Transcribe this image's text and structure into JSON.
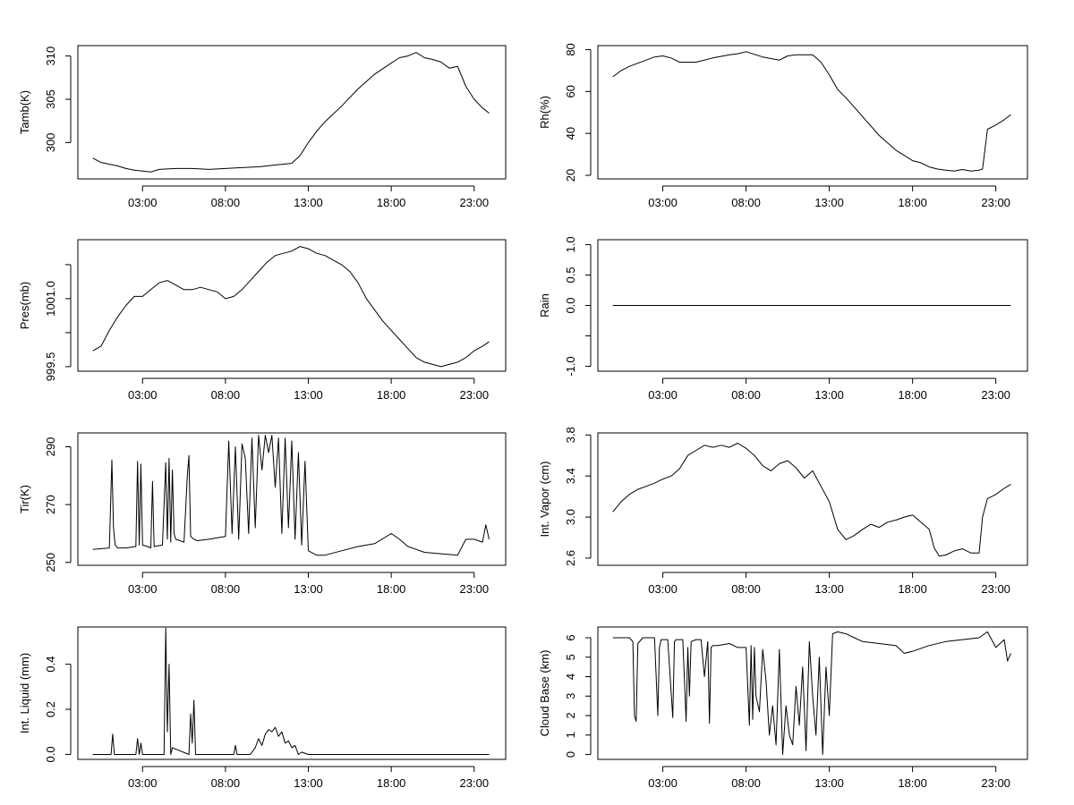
{
  "chart_data": [
    {
      "type": "line",
      "ylabel": "Tamb(K)",
      "x_ticks": [
        "03:00",
        "08:00",
        "13:00",
        "18:00",
        "23:00"
      ],
      "x_tick_values": [
        3,
        8,
        13,
        18,
        23
      ],
      "xlim": [
        -0.9,
        24.9
      ],
      "ylim": [
        295.8,
        311.2
      ],
      "y_ticks": [
        300,
        305,
        310
      ],
      "y_tick_labels": [
        "300",
        "305",
        "310"
      ],
      "series": [
        {
          "x": [
            0,
            0.5,
            1,
            1.5,
            2,
            2.5,
            3,
            3.5,
            4,
            5,
            6,
            7,
            8,
            9,
            10,
            11,
            12,
            12.5,
            13,
            13.5,
            14,
            15,
            16,
            17,
            18,
            18.5,
            19,
            19.5,
            20,
            20.5,
            21,
            21.5,
            22,
            22.5,
            23,
            23.5,
            23.9
          ],
          "y": [
            298.2,
            297.7,
            297.5,
            297.3,
            297.0,
            296.8,
            296.7,
            296.6,
            296.9,
            297.0,
            297.0,
            296.9,
            297.0,
            297.1,
            297.2,
            297.4,
            297.6,
            298.5,
            300.0,
            301.3,
            302.4,
            304.2,
            306.2,
            307.9,
            309.2,
            309.8,
            310.0,
            310.4,
            309.8,
            309.6,
            309.3,
            308.6,
            308.8,
            306.5,
            305.0,
            304.0,
            303.4
          ]
        }
      ]
    },
    {
      "type": "line",
      "ylabel": "Rh(%)",
      "x_ticks": [
        "03:00",
        "08:00",
        "13:00",
        "18:00",
        "23:00"
      ],
      "x_tick_values": [
        3,
        8,
        13,
        18,
        23
      ],
      "xlim": [
        -0.9,
        24.9
      ],
      "ylim": [
        18.3,
        81.9
      ],
      "y_ticks": [
        20,
        40,
        60,
        80
      ],
      "y_tick_labels": [
        "20",
        "40",
        "60",
        "80"
      ],
      "series": [
        {
          "x": [
            0,
            0.5,
            1,
            2,
            2.5,
            3,
            3.5,
            4,
            5,
            6,
            7,
            7.5,
            8,
            9,
            10,
            10.5,
            11,
            12,
            12.5,
            13,
            13.5,
            14,
            15,
            16,
            17,
            18,
            18.5,
            19,
            19.5,
            20,
            20.5,
            21,
            21.5,
            22,
            22.2,
            22.5,
            23,
            23.5,
            23.9
          ],
          "y": [
            67.0,
            70.0,
            72.0,
            75.0,
            76.5,
            77.0,
            76.0,
            74.0,
            74.0,
            76.0,
            77.5,
            78.0,
            79.0,
            76.5,
            75.0,
            77.0,
            77.5,
            77.5,
            74.0,
            68.0,
            61.0,
            57.0,
            48.0,
            39.0,
            32.0,
            27.0,
            26.0,
            24.0,
            23.0,
            22.5,
            22.0,
            22.8,
            22.0,
            22.5,
            23.0,
            42.0,
            44.0,
            46.5,
            49.0
          ]
        }
      ]
    },
    {
      "type": "line",
      "ylabel": "Pres(mb)",
      "x_ticks": [
        "03:00",
        "08:00",
        "13:00",
        "18:00",
        "23:00"
      ],
      "x_tick_values": [
        3,
        8,
        13,
        18,
        23
      ],
      "xlim": [
        -0.9,
        24.9
      ],
      "ylim": [
        999.4,
        1002.3
      ],
      "y_ticks": [
        999.5,
        1000.25,
        1001.0,
        1001.75
      ],
      "y_tick_labels": [
        "999.5",
        "",
        "1001.0",
        ""
      ],
      "series": [
        {
          "x": [
            0,
            0.5,
            1,
            1.5,
            2,
            2.5,
            3,
            3.5,
            4,
            4.5,
            5,
            5.5,
            6,
            6.5,
            7,
            7.5,
            8,
            8.5,
            9,
            9.5,
            10,
            10.5,
            11,
            11.5,
            12,
            12.5,
            13,
            13.5,
            14,
            14.5,
            15,
            15.5,
            16,
            16.5,
            17,
            17.5,
            18,
            18.5,
            19,
            19.5,
            20,
            20.5,
            21,
            21.5,
            22,
            22.5,
            23,
            23.5,
            23.9
          ],
          "y": [
            999.85,
            999.95,
            1000.3,
            1000.6,
            1000.85,
            1001.05,
            1001.05,
            1001.2,
            1001.35,
            1001.4,
            1001.3,
            1001.2,
            1001.2,
            1001.25,
            1001.2,
            1001.15,
            1001.0,
            1001.05,
            1001.2,
            1001.4,
            1001.6,
            1001.8,
            1001.95,
            1002.0,
            1002.05,
            1002.15,
            1002.1,
            1002.0,
            1001.95,
            1001.85,
            1001.75,
            1001.6,
            1001.35,
            1001.0,
            1000.75,
            1000.5,
            1000.3,
            1000.1,
            999.9,
            999.7,
            999.6,
            999.55,
            999.5,
            999.55,
            999.6,
            999.7,
            999.85,
            999.95,
            1000.05
          ]
        }
      ]
    },
    {
      "type": "line",
      "ylabel": "Rain",
      "x_ticks": [
        "03:00",
        "08:00",
        "13:00",
        "18:00",
        "23:00"
      ],
      "x_tick_values": [
        3,
        8,
        13,
        18,
        23
      ],
      "xlim": [
        -0.9,
        24.9
      ],
      "ylim": [
        -1.08,
        1.08
      ],
      "y_ticks": [
        -1.0,
        -0.5,
        0.0,
        0.5,
        1.0
      ],
      "y_tick_labels": [
        "-1.0",
        "",
        "0.0",
        "0.5",
        "1.0"
      ],
      "series": [
        {
          "x": [
            0,
            23.9
          ],
          "y": [
            0,
            0
          ]
        }
      ]
    },
    {
      "type": "line",
      "ylabel": "Tir(K)",
      "x_ticks": [
        "03:00",
        "08:00",
        "13:00",
        "18:00",
        "23:00"
      ],
      "x_tick_values": [
        3,
        8,
        13,
        18,
        23
      ],
      "xlim": [
        -0.9,
        24.9
      ],
      "ylim": [
        249.0,
        294.8
      ],
      "y_ticks": [
        250,
        270,
        290
      ],
      "y_tick_labels": [
        "250",
        "270",
        "290"
      ],
      "series": [
        {
          "x": [
            0,
            1,
            1.15,
            1.25,
            1.35,
            1.5,
            2,
            2.6,
            2.7,
            2.8,
            2.9,
            3.0,
            3.3,
            3.5,
            3.6,
            3.7,
            4.2,
            4.4,
            4.5,
            4.6,
            4.7,
            4.8,
            4.9,
            5.0,
            5.5,
            5.7,
            5.8,
            5.9,
            6.0,
            6.1,
            6.3,
            7,
            8,
            8.2,
            8.4,
            8.6,
            8.8,
            9.0,
            9.2,
            9.4,
            9.6,
            9.8,
            10.0,
            10.2,
            10.4,
            10.6,
            10.8,
            11.0,
            11.2,
            11.4,
            11.6,
            11.8,
            12.0,
            12.2,
            12.4,
            12.6,
            12.8,
            13.0,
            13.5,
            14,
            15,
            16,
            17,
            18,
            18.5,
            19,
            19.5,
            20,
            21,
            22,
            22.5,
            23,
            23.5,
            23.7,
            23.9
          ],
          "y": [
            254.5,
            255.0,
            285.5,
            262.0,
            256.0,
            255.0,
            255.0,
            255.5,
            285.0,
            256.0,
            284.0,
            256.0,
            255.5,
            255.0,
            278.0,
            255.5,
            256.0,
            284.5,
            258.0,
            286.0,
            257.0,
            282.0,
            260.0,
            258.0,
            257.0,
            280.0,
            287.0,
            259.0,
            258.5,
            258.0,
            257.5,
            258.0,
            259.0,
            292.0,
            260.0,
            290.0,
            258.0,
            291.0,
            286.0,
            260.0,
            293.0,
            262.0,
            294.0,
            282.0,
            294.0,
            288.0,
            294.0,
            276.0,
            293.0,
            260.0,
            293.0,
            262.0,
            292.0,
            258.0,
            288.0,
            256.0,
            285.0,
            254.0,
            252.5,
            252.5,
            254.0,
            255.5,
            256.5,
            260.0,
            258.0,
            255.5,
            254.5,
            253.5,
            253.0,
            252.5,
            258.0,
            258.0,
            257.0,
            263.0,
            258.0
          ]
        }
      ]
    },
    {
      "type": "line",
      "ylabel": "Int. Vapor (cm)",
      "x_ticks": [
        "03:00",
        "08:00",
        "13:00",
        "18:00",
        "23:00"
      ],
      "x_tick_values": [
        3,
        8,
        13,
        18,
        23
      ],
      "xlim": [
        -0.9,
        24.9
      ],
      "ylim": [
        2.53,
        3.82
      ],
      "y_ticks": [
        2.6,
        3.0,
        3.4,
        3.8
      ],
      "y_tick_labels": [
        "2.6",
        "3.0",
        "3.4",
        "3.8"
      ],
      "series": [
        {
          "x": [
            0,
            0.5,
            1,
            1.5,
            2,
            2.5,
            3,
            3.5,
            4,
            4.5,
            5,
            5.5,
            6,
            6.5,
            7,
            7.5,
            8,
            8.5,
            9,
            9.5,
            10,
            10.5,
            11,
            11.5,
            12,
            12.5,
            13,
            13.5,
            14,
            14.5,
            15,
            15.5,
            16,
            16.5,
            17,
            17.5,
            18,
            18.5,
            19,
            19.3,
            19.6,
            20,
            20.5,
            21,
            21.5,
            22,
            22.2,
            22.5,
            23,
            23.5,
            23.9
          ],
          "y": [
            3.05,
            3.15,
            3.22,
            3.27,
            3.3,
            3.33,
            3.37,
            3.4,
            3.47,
            3.6,
            3.65,
            3.7,
            3.68,
            3.7,
            3.68,
            3.72,
            3.67,
            3.6,
            3.5,
            3.45,
            3.52,
            3.55,
            3.48,
            3.38,
            3.45,
            3.3,
            3.15,
            2.88,
            2.78,
            2.82,
            2.88,
            2.93,
            2.9,
            2.95,
            2.97,
            3.0,
            3.02,
            2.95,
            2.88,
            2.7,
            2.62,
            2.63,
            2.67,
            2.69,
            2.65,
            2.65,
            3.0,
            3.18,
            3.22,
            3.28,
            3.32
          ]
        }
      ]
    },
    {
      "type": "line",
      "ylabel": "Int. Liquid (mm)",
      "x_ticks": [
        "03:00",
        "08:00",
        "13:00",
        "18:00",
        "23:00"
      ],
      "x_tick_values": [
        3,
        8,
        13,
        18,
        23
      ],
      "xlim": [
        -0.9,
        24.9
      ],
      "ylim": [
        -0.022,
        0.565
      ],
      "y_ticks": [
        0.0,
        0.2,
        0.4
      ],
      "y_tick_labels": [
        "0.0",
        "0.2",
        "0.4"
      ],
      "series": [
        {
          "x": [
            0,
            1.1,
            1.2,
            1.3,
            2.6,
            2.7,
            2.8,
            2.9,
            3.0,
            4.3,
            4.4,
            4.5,
            4.6,
            4.7,
            4.8,
            5.8,
            5.9,
            6.0,
            6.1,
            6.2,
            8.5,
            8.6,
            8.7,
            9.5,
            9.8,
            10.0,
            10.2,
            10.4,
            10.6,
            10.8,
            11.0,
            11.2,
            11.4,
            11.6,
            11.8,
            12.0,
            12.2,
            12.4,
            12.6,
            13,
            23.9
          ],
          "y": [
            0,
            0,
            0.09,
            0,
            0,
            0.07,
            0,
            0.05,
            0,
            0,
            0.56,
            0.1,
            0.4,
            0,
            0.03,
            0,
            0.18,
            0.05,
            0.24,
            0,
            0,
            0.04,
            0,
            0,
            0.03,
            0.07,
            0.04,
            0.09,
            0.11,
            0.1,
            0.12,
            0.08,
            0.1,
            0.05,
            0.06,
            0.03,
            0.04,
            0,
            0.01,
            0,
            0
          ]
        }
      ]
    },
    {
      "type": "line",
      "ylabel": "Cloud Base (km)",
      "x_ticks": [
        "03:00",
        "08:00",
        "13:00",
        "18:00",
        "23:00"
      ],
      "x_tick_values": [
        3,
        8,
        13,
        18,
        23
      ],
      "xlim": [
        -0.9,
        24.9
      ],
      "ylim": [
        -0.25,
        6.55
      ],
      "y_ticks": [
        0,
        1,
        2,
        3,
        4,
        5,
        6
      ],
      "y_tick_labels": [
        "0",
        "1",
        "2",
        "3",
        "4",
        "5",
        "6"
      ],
      "series": [
        {
          "x": [
            0,
            1,
            1.2,
            1.3,
            1.4,
            1.5,
            1.8,
            2.5,
            2.7,
            2.8,
            2.9,
            3.3,
            3.6,
            3.7,
            3.8,
            4.2,
            4.4,
            4.5,
            4.6,
            4.7,
            5.0,
            5.3,
            5.5,
            5.7,
            5.8,
            5.9,
            6.0,
            6.3,
            7,
            7.5,
            8,
            8.2,
            8.3,
            8.4,
            8.5,
            8.6,
            8.8,
            9.0,
            9.2,
            9.4,
            9.6,
            9.8,
            10.0,
            10.2,
            10.4,
            10.6,
            10.8,
            11.0,
            11.2,
            11.4,
            11.6,
            11.8,
            12.0,
            12.2,
            12.4,
            12.6,
            12.8,
            13.0,
            13.2,
            13.5,
            14,
            14.5,
            15,
            16,
            17,
            17.5,
            18,
            19,
            20,
            21,
            22,
            22.5,
            23,
            23.5,
            23.7,
            23.9
          ],
          "y": [
            6.0,
            6.0,
            5.8,
            2.0,
            1.7,
            5.7,
            6.0,
            6.0,
            2.0,
            5.5,
            5.9,
            5.9,
            1.9,
            5.8,
            5.9,
            5.9,
            1.7,
            5.5,
            3.0,
            5.8,
            5.9,
            5.9,
            4.0,
            5.8,
            1.6,
            5.5,
            5.6,
            5.6,
            5.7,
            5.5,
            5.5,
            1.5,
            5.6,
            1.8,
            5.5,
            3.0,
            2.2,
            5.4,
            3.8,
            1.0,
            2.5,
            0.5,
            5.4,
            0.0,
            2.5,
            1.0,
            0.5,
            3.5,
            1.5,
            4.5,
            0.2,
            5.8,
            3.0,
            1.0,
            5.0,
            0.0,
            4.5,
            2.0,
            6.2,
            6.3,
            6.2,
            6.0,
            5.8,
            5.7,
            5.6,
            5.2,
            5.3,
            5.6,
            5.8,
            5.9,
            6.0,
            6.3,
            5.5,
            5.9,
            4.8,
            5.2
          ]
        }
      ]
    }
  ]
}
